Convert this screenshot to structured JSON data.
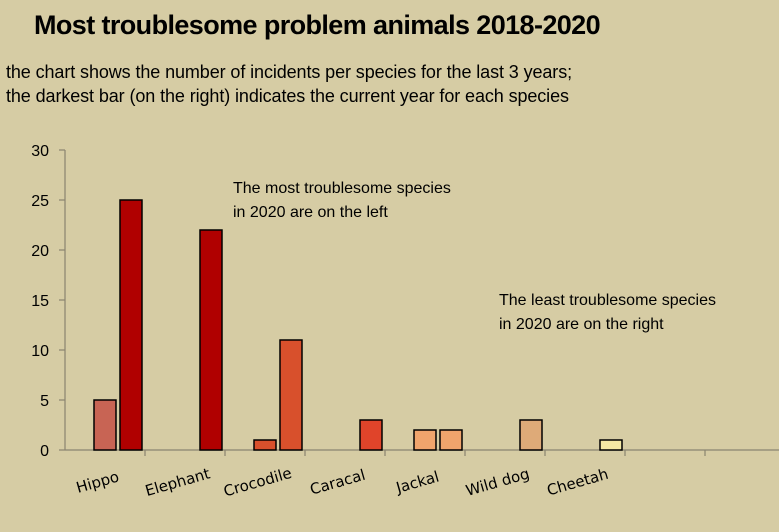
{
  "title": "Most troublesome problem animals 2018-2020",
  "subtitle_line1": "the chart shows the number of incidents per species for the last 3 years;",
  "subtitle_line2": "the darkest bar (on the right) indicates the current year for each species",
  "annotations": {
    "left_line1": "The most troublesome species",
    "left_line2": " in 2020 are on the left",
    "right_line1": "The least troublesome species",
    "right_line2": " in 2020 are on the right"
  },
  "chart_data": {
    "type": "bar",
    "title": "Most troublesome problem animals 2018-2020",
    "categories": [
      "Hippo",
      "Elephant",
      "Crocodile",
      "Caracal",
      "Jackal",
      "Wild dog",
      "Cheetah"
    ],
    "series": [
      {
        "name": "",
        "values": [
          0,
          0,
          0,
          0,
          0,
          0,
          0
        ]
      },
      {
        "name": "",
        "values": [
          5,
          0,
          1,
          0,
          2,
          0,
          0
        ]
      },
      {
        "name": "",
        "values": [
          25,
          22,
          11,
          3,
          2,
          3,
          1
        ]
      }
    ],
    "colors": {
      "Hippo": [
        "#c86454",
        "#c86454",
        "#b00000"
      ],
      "Elephant": [
        "#b00000",
        "#b00000",
        "#b00000"
      ],
      "Crocodile": [
        "#d8502c",
        "#d8502c",
        "#d8502c"
      ],
      "Caracal": [
        "#e0442a",
        "#e0442a",
        "#e0442a"
      ],
      "Jackal": [
        "#f0a46c",
        "#f0a46c",
        "#f0a46c"
      ],
      "Wild dog": [
        "#deaa78",
        "#deaa78",
        "#deaa78"
      ],
      "Cheetah": [
        "#f4e8a4",
        "#f4e8a4",
        "#f4e8a4"
      ]
    },
    "ylim": [
      0,
      30
    ],
    "yticks": [
      0,
      5,
      10,
      15,
      20,
      25,
      30
    ],
    "grid": false,
    "legend": "none",
    "xlabel": "",
    "ylabel": ""
  }
}
